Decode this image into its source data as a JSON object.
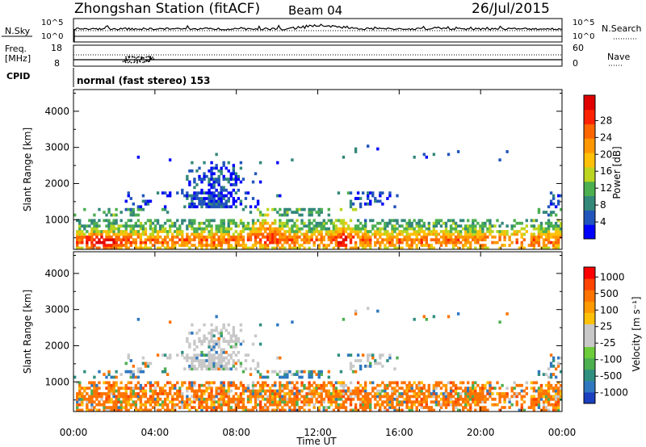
{
  "header": {
    "station": "Zhongshan Station (fitACF)",
    "beam": "Beam 04",
    "date": "26/Jul/2015"
  },
  "top_panels": {
    "nsky_label": "N.Sky",
    "nsky_ticks": [
      "10^5",
      "10^0"
    ],
    "nsearch_label": "N.Search",
    "freq_label_1": "Freq.",
    "freq_label_2": "[MHz]",
    "freq_ticks": [
      "18",
      "8"
    ],
    "nave_label": "Nave",
    "nave_ticks": [
      "60",
      "0"
    ],
    "cpid_label": "CPID",
    "cpid_text": "normal (fast stereo) 153"
  },
  "chart_data": [
    {
      "type": "heatmap",
      "name": "power",
      "xlabel": "Time UT",
      "ylabel": "Slant Range [km]",
      "xlim": [
        0,
        24
      ],
      "ylim": [
        180,
        4600
      ],
      "yticks": [
        1000,
        2000,
        3000,
        4000
      ],
      "colorbar_label": "Power [dB]",
      "colorbar_ticks": [
        "4",
        "8",
        "12",
        "16",
        "20",
        "24",
        "28"
      ],
      "colors": [
        "#0000ff",
        "#2255bb",
        "#33887a",
        "#4caf50",
        "#bbd520",
        "#ffc107",
        "#ff9800",
        "#ff6600",
        "#ff2200",
        "#e00000"
      ]
    },
    {
      "type": "heatmap",
      "name": "velocity",
      "xlabel": "Time UT",
      "ylabel": "Slant Range [km]",
      "xlim": [
        0,
        24
      ],
      "ylim": [
        180,
        4600
      ],
      "yticks": [
        1000,
        2000,
        3000,
        4000
      ],
      "colorbar_label": "Velocity [m s⁻¹]",
      "colorbar_ticks": [
        "1000",
        "500",
        "100",
        "25",
        "-25",
        "-100",
        "-500",
        "-1000"
      ],
      "colors": [
        "#1a3fbf",
        "#2f78c0",
        "#2f8f80",
        "#4caf50",
        "#6ccc3a",
        "#c8c8c8",
        "#c8c8c8",
        "#ffc107",
        "#ff9a00",
        "#ff7300",
        "#ff4400",
        "#ff0000"
      ]
    }
  ],
  "xaxis": {
    "ticks": [
      "00:00",
      "04:00",
      "08:00",
      "12:00",
      "16:00",
      "20:00",
      "00:00"
    ],
    "label": "Time UT"
  }
}
